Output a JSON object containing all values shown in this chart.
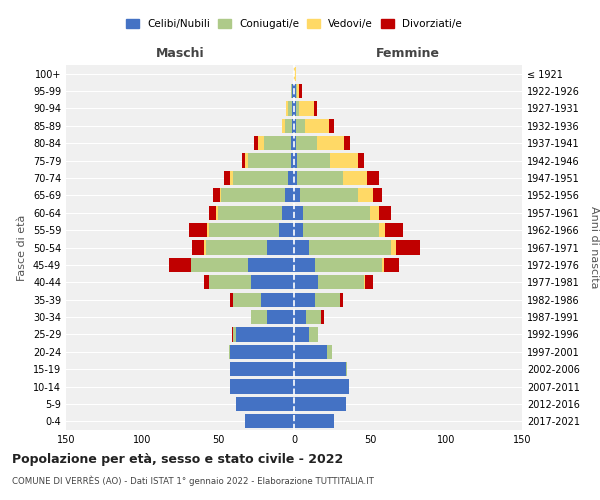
{
  "age_groups": [
    "0-4",
    "5-9",
    "10-14",
    "15-19",
    "20-24",
    "25-29",
    "30-34",
    "35-39",
    "40-44",
    "45-49",
    "50-54",
    "55-59",
    "60-64",
    "65-69",
    "70-74",
    "75-79",
    "80-84",
    "85-89",
    "90-94",
    "95-99",
    "100+"
  ],
  "birth_years": [
    "2017-2021",
    "2012-2016",
    "2007-2011",
    "2002-2006",
    "1997-2001",
    "1992-1996",
    "1987-1991",
    "1982-1986",
    "1977-1981",
    "1972-1976",
    "1967-1971",
    "1962-1966",
    "1957-1961",
    "1952-1956",
    "1947-1951",
    "1942-1946",
    "1937-1941",
    "1932-1936",
    "1927-1931",
    "1922-1926",
    "≤ 1921"
  ],
  "male": {
    "celibe": [
      32,
      38,
      42,
      42,
      42,
      38,
      18,
      22,
      28,
      30,
      18,
      10,
      8,
      6,
      4,
      2,
      2,
      1,
      1,
      1,
      0
    ],
    "coniugato": [
      0,
      0,
      0,
      0,
      1,
      2,
      10,
      18,
      28,
      38,
      40,
      46,
      42,
      42,
      36,
      28,
      18,
      5,
      3,
      1,
      0
    ],
    "vedovo": [
      0,
      0,
      0,
      0,
      0,
      0,
      0,
      0,
      0,
      0,
      1,
      1,
      1,
      1,
      2,
      2,
      4,
      2,
      1,
      0,
      0
    ],
    "divorziato": [
      0,
      0,
      0,
      0,
      0,
      1,
      0,
      2,
      3,
      14,
      8,
      12,
      5,
      4,
      4,
      2,
      2,
      0,
      0,
      0,
      0
    ]
  },
  "female": {
    "nubile": [
      26,
      34,
      36,
      34,
      22,
      10,
      8,
      14,
      16,
      14,
      10,
      6,
      6,
      4,
      2,
      2,
      1,
      1,
      1,
      1,
      0
    ],
    "coniugata": [
      0,
      0,
      0,
      1,
      3,
      6,
      10,
      16,
      30,
      44,
      54,
      50,
      44,
      38,
      30,
      22,
      14,
      6,
      2,
      1,
      0
    ],
    "vedova": [
      0,
      0,
      0,
      0,
      0,
      0,
      0,
      0,
      1,
      1,
      3,
      4,
      6,
      10,
      16,
      18,
      18,
      16,
      10,
      1,
      1
    ],
    "divorziata": [
      0,
      0,
      0,
      0,
      0,
      0,
      2,
      2,
      5,
      10,
      16,
      12,
      8,
      6,
      8,
      4,
      4,
      3,
      2,
      2,
      0
    ]
  },
  "colors": {
    "celibe": "#4472C4",
    "coniugato": "#AECA89",
    "vedovo": "#FFD966",
    "divorziato": "#C00000"
  },
  "xlim": 150,
  "title": "Popolazione per età, sesso e stato civile - 2022",
  "subtitle": "COMUNE DI VERRÈS (AO) - Dati ISTAT 1° gennaio 2022 - Elaborazione TUTTITALIA.IT",
  "ylabel_left": "Fasce di età",
  "ylabel_right": "Anni di nascita",
  "xlabel_left": "Maschi",
  "xlabel_right": "Femmine",
  "legend_labels": [
    "Celibi/Nubili",
    "Coniugati/e",
    "Vedovi/e",
    "Divorziati/e"
  ],
  "background_color": "#f0f0f0"
}
